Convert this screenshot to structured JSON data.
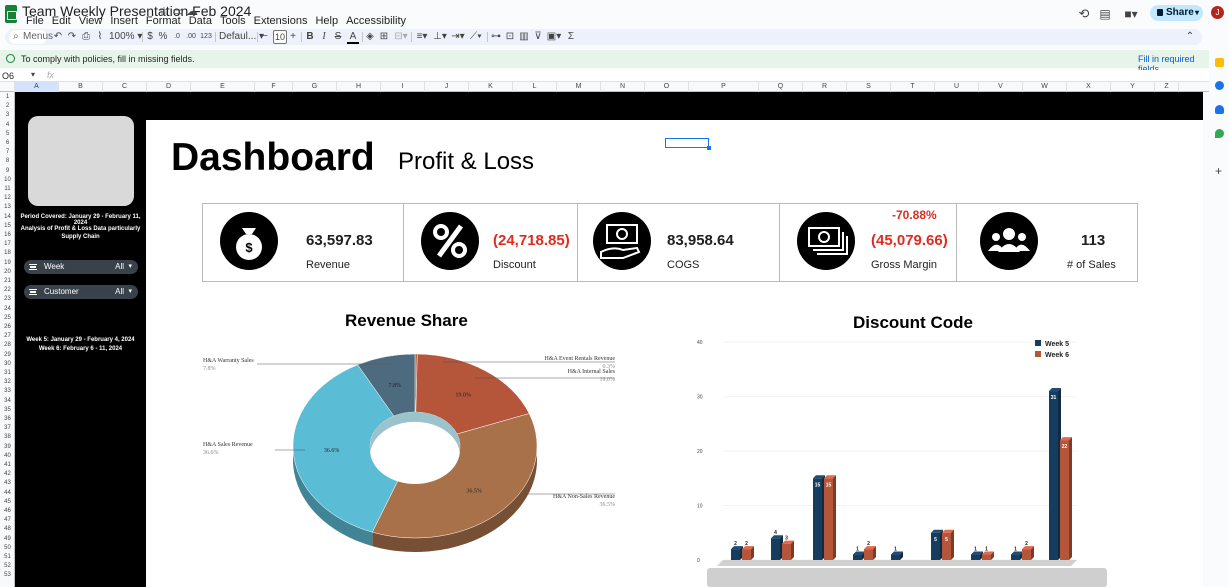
{
  "window": {
    "doc_title": "Team Weekly Presentation Feb  2024"
  },
  "menu": [
    "File",
    "Edit",
    "View",
    "Insert",
    "Format",
    "Data",
    "Tools",
    "Extensions",
    "Help",
    "Accessibility"
  ],
  "header": {
    "share_label": "Share",
    "avatar_initial": "J"
  },
  "toolbar": {
    "menus_placeholder": "Menus",
    "zoom": "100%",
    "currency": "$",
    "percent": "%",
    "dec_decrease": ".0",
    "dec_increase": ".00",
    "number_format": "123",
    "font": "Defaul...",
    "font_size": "10",
    "minus": "−",
    "plus": "+"
  },
  "notice": {
    "text": "To comply with policies, fill in missing fields.",
    "link": "Fill in required fields"
  },
  "formula": {
    "cell_ref": "O6",
    "fx": "fx"
  },
  "columns": [
    "A",
    "B",
    "C",
    "D",
    "E",
    "F",
    "G",
    "H",
    "I",
    "J",
    "K",
    "L",
    "M",
    "N",
    "O",
    "P",
    "Q",
    "R",
    "S",
    "T",
    "U",
    "V",
    "W",
    "X",
    "Y",
    "Z"
  ],
  "rows": [
    "1",
    "2",
    "3",
    "4",
    "5",
    "6",
    "7",
    "8",
    "9",
    "10",
    "11",
    "12",
    "13",
    "14",
    "15",
    "16",
    "17",
    "18",
    "19",
    "20",
    "21",
    "22",
    "23",
    "24",
    "25",
    "26",
    "27",
    "28",
    "29",
    "30",
    "31",
    "32",
    "33",
    "34",
    "35",
    "36",
    "37",
    "38",
    "39",
    "40",
    "41",
    "42",
    "43",
    "44",
    "45",
    "46",
    "47",
    "48",
    "49",
    "50",
    "51",
    "52",
    "53"
  ],
  "sidebar": {
    "period": "Period Covered: January 29 - February 11, 2024",
    "analysis": "Analysis of Profit & Loss Data particularly Supply Chain",
    "filters": [
      {
        "label": "Week",
        "value": "All"
      },
      {
        "label": "Customer",
        "value": "All"
      }
    ],
    "week5": "Week 5: January 29 - February 4, 2024",
    "week6": "Week 6: February 6 - 11, 2024"
  },
  "dashboard": {
    "title": "Dashboard",
    "subtitle": "Profit & Loss"
  },
  "kpis": [
    {
      "icon": "money-bag-icon",
      "value": "63,597.83",
      "label": "Revenue",
      "negative": false
    },
    {
      "icon": "percent-icon",
      "value": "(24,718.85)",
      "label": "Discount",
      "negative": true
    },
    {
      "icon": "cash-hand-icon",
      "value": "83,958.64",
      "label": "COGS",
      "negative": false
    },
    {
      "icon": "cash-stack-icon",
      "value": "(45,079.66)",
      "label": "Gross Margin",
      "negative": true,
      "extra": "-70.88%"
    },
    {
      "icon": "people-icon",
      "value": "113",
      "label": "# of Sales",
      "negative": false
    }
  ],
  "colors": {
    "navy": "#173d5e",
    "rust": "#b5553a",
    "teal": "#5bbcd6",
    "slate": "#4e6a7e",
    "brown": "#a9714a",
    "red": "#e02b20"
  },
  "chart_data": [
    {
      "type": "pie",
      "title": "Revenue Share",
      "categories": [
        "H&A Event Rentals Revenue",
        "H&A Internal Sales",
        "H&A Non-Sales Revenue",
        "H&A Sales Revenue",
        "H&A Warranty Sales"
      ],
      "values": [
        0.3,
        19.0,
        36.5,
        36.6,
        7.8
      ],
      "labels": [
        "0.3%",
        "19.0%",
        "36.5%",
        "36.6%",
        "7.8%"
      ]
    },
    {
      "type": "bar",
      "title": "Discount Code",
      "ylim": [
        0,
        40
      ],
      "yticks": [
        "0",
        "10",
        "20",
        "30",
        "40"
      ],
      "series": [
        {
          "name": "Week 5",
          "values": [
            2,
            4,
            15,
            1,
            1,
            5,
            1,
            1,
            31
          ]
        },
        {
          "name": "Week 6",
          "values": [
            2,
            3,
            15,
            2,
            null,
            5,
            1,
            2,
            22
          ]
        }
      ],
      "legend": "top-right"
    }
  ]
}
